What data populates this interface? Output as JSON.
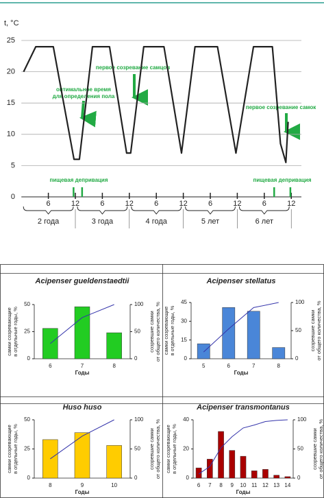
{
  "chart_data": [
    {
      "type": "line",
      "ylabel": "t, °C",
      "color": "#222222",
      "x": [
        0.5,
        3.2,
        4.4,
        7.1,
        11.7,
        12.9,
        15.8,
        19.6,
        23.4,
        24.3,
        27.2,
        31.7,
        35.6,
        38.6,
        43.6,
        47.7,
        51.6,
        55.8,
        57.6,
        58.8,
        59.3
      ],
      "values": [
        20,
        24,
        24,
        24,
        6,
        6,
        24,
        24,
        7,
        7,
        24,
        24,
        7,
        24,
        24,
        7,
        24,
        24,
        8.5,
        5.5,
        12
      ],
      "xlim": [
        0,
        60
      ],
      "ylim": [
        0,
        25
      ],
      "yticks": [
        0,
        5,
        10,
        15,
        20,
        25
      ],
      "grid": true,
      "xticks": [
        6,
        12,
        {
          "value": 18,
          "label": "6"
        },
        {
          "value": 24,
          "label": "12"
        },
        {
          "value": 30,
          "label": "6"
        },
        {
          "value": 36,
          "label": "12"
        },
        {
          "value": 42,
          "label": "6"
        },
        {
          "value": 48,
          "label": "12"
        },
        {
          "value": 54,
          "label": "6"
        },
        {
          "value": 60,
          "label": "12"
        }
      ],
      "periods": [
        {
          "label": "2 года",
          "start": 0,
          "end": 12
        },
        {
          "label": "3 года",
          "start": 12,
          "end": 24
        },
        {
          "label": "4 года",
          "start": 24,
          "end": 36
        },
        {
          "label": "5 лет",
          "start": 36,
          "end": 48
        },
        {
          "label": "6 лет",
          "start": 48,
          "end": 60
        }
      ],
      "deprivation_color": "#22aa44",
      "deprivation_x": [
        11.6,
        13.5,
        56.2,
        59.8
      ],
      "annotations": [
        [
          "оптимальное время",
          "для определения пола"
        ],
        [
          "первое созревание самцов"
        ],
        [
          "первое созревание самок"
        ],
        [
          "пищевая депривация"
        ],
        [
          "пищевая депривация"
        ]
      ]
    },
    {
      "type": "bar",
      "title": "Acipenser gueldenstaedtii",
      "xlabel": "Годы",
      "ylabel": [
        "самки созревающие",
        "в отдельные годы, %"
      ],
      "y2label": [
        "созревшие самки",
        "от общего количества, %"
      ],
      "categories": [
        "6",
        "7",
        "8"
      ],
      "ylim": [
        0,
        50
      ],
      "yticks": [
        0,
        25,
        50
      ],
      "y2lim": [
        0,
        100
      ],
      "y2ticks": [
        0,
        50,
        100
      ],
      "series": [
        {
          "type": "bar",
          "color": "#22cc22",
          "values": [
            28,
            48,
            24
          ]
        },
        {
          "type": "line",
          "axis": "y2",
          "color": "#3333aa",
          "values": [
            28,
            76,
            100
          ]
        }
      ]
    },
    {
      "type": "bar",
      "title": "Acipenser stellatus",
      "xlabel": "Годы",
      "ylabel": [
        "самки созревающие",
        "в отдельные годы, %"
      ],
      "y2label": [
        "созревшие самки",
        "от общего количества, %"
      ],
      "categories": [
        "5",
        "6",
        "7",
        "8"
      ],
      "ylim": [
        0,
        45
      ],
      "yticks": [
        0,
        15,
        30,
        45
      ],
      "y2lim": [
        0,
        100
      ],
      "y2ticks": [
        0,
        50,
        100
      ],
      "series": [
        {
          "type": "bar",
          "color": "#4a86d8",
          "values": [
            12,
            41,
            38,
            9
          ]
        },
        {
          "type": "line",
          "axis": "y2",
          "color": "#3333aa",
          "values": [
            12,
            53,
            91,
            100
          ]
        }
      ]
    },
    {
      "type": "bar",
      "title": "Huso huso",
      "xlabel": "Годы",
      "ylabel": [
        "самки созревающие",
        "в отдельные годы, %"
      ],
      "y2label": [
        "созревшие самки",
        "от общего количества, %"
      ],
      "categories": [
        "8",
        "9",
        "10"
      ],
      "ylim": [
        0,
        50
      ],
      "yticks": [
        0,
        25,
        50
      ],
      "y2lim": [
        0,
        100
      ],
      "y2ticks": [
        0,
        50,
        100
      ],
      "series": [
        {
          "type": "bar",
          "color": "#ffcc00",
          "values": [
            33,
            39,
            28
          ]
        },
        {
          "type": "line",
          "axis": "y2",
          "color": "#3333aa",
          "values": [
            33,
            72,
            100
          ]
        }
      ]
    },
    {
      "type": "bar",
      "title": "Acipenser transmontanus",
      "xlabel": "Годы",
      "ylabel": [
        "самки созревающие",
        "в отдельные годы, %"
      ],
      "y2label": [
        "созревшие самки",
        "от общего количества, %"
      ],
      "categories": [
        "6",
        "7",
        "8",
        "9",
        "10",
        "11",
        "12",
        "13",
        "14"
      ],
      "ylim": [
        0,
        40
      ],
      "yticks": [
        0,
        20,
        40
      ],
      "y2lim": [
        0,
        100
      ],
      "y2ticks": [
        0,
        50,
        100
      ],
      "series": [
        {
          "type": "bar",
          "color": "#aa0000",
          "values": [
            7,
            13,
            32,
            19,
            15,
            5,
            6,
            2,
            1
          ]
        },
        {
          "type": "line",
          "axis": "y2",
          "color": "#3333aa",
          "values": [
            7,
            20,
            52,
            71,
            86,
            91,
            97,
            99,
            100
          ]
        }
      ]
    }
  ]
}
